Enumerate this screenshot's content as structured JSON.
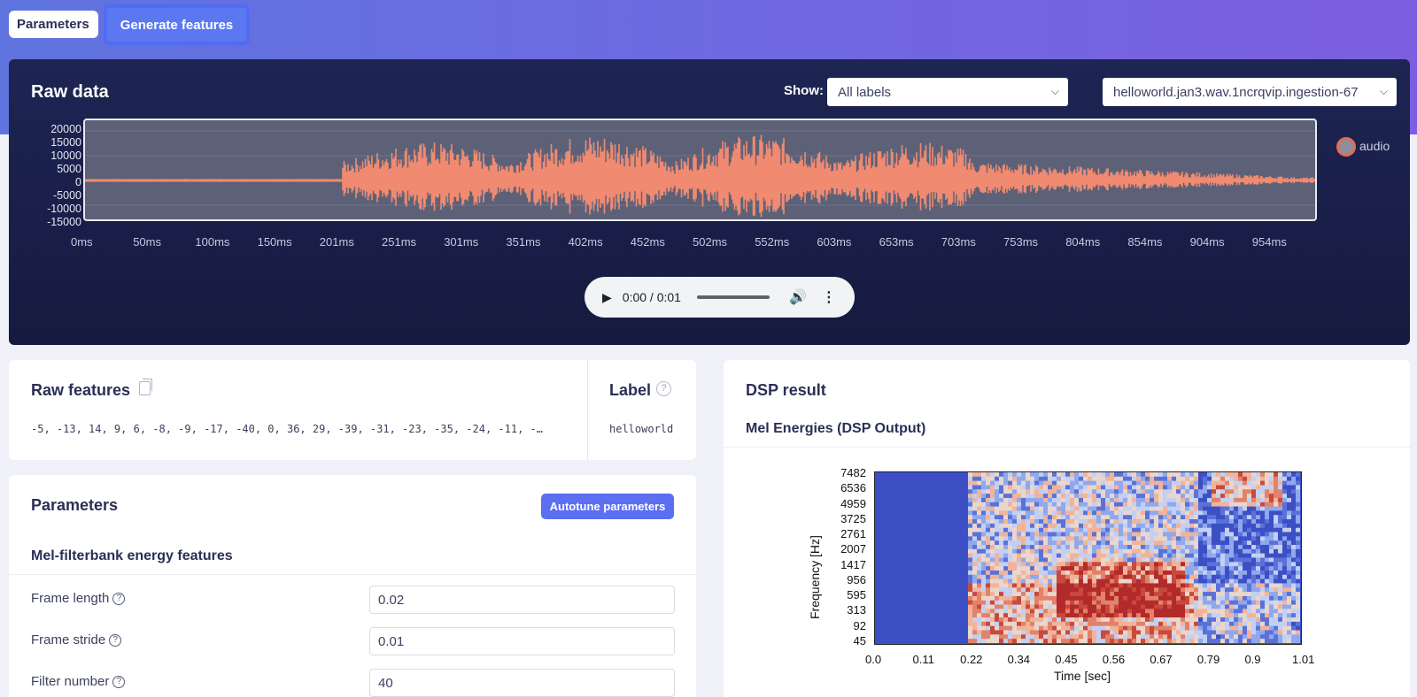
{
  "tabs": {
    "parameters": "Parameters",
    "generate": "Generate features"
  },
  "raw_data": {
    "title": "Raw data",
    "show_label": "Show:",
    "show_value": "All labels",
    "file_value": "helloworld.jan3.wav.1ncrqvip.ingestion-67",
    "y_ticks": [
      "20000",
      "15000",
      "10000",
      "5000",
      "0",
      "-5000",
      "-10000",
      "-15000"
    ],
    "x_ticks": [
      "0ms",
      "50ms",
      "100ms",
      "150ms",
      "201ms",
      "251ms",
      "301ms",
      "351ms",
      "402ms",
      "452ms",
      "502ms",
      "552ms",
      "603ms",
      "653ms",
      "703ms",
      "753ms",
      "804ms",
      "854ms",
      "904ms",
      "954ms"
    ],
    "legend": "audio",
    "wave_color": "#f08a70"
  },
  "audio_player": {
    "time": "0:00 / 0:01"
  },
  "raw_features": {
    "title": "Raw features",
    "values": "-5, -13, 14, 9, 6, -8, -9, -17, -40, 0, 36, 29, -39, -31, -23, -35, -24, -11, -…",
    "label_title": "Label",
    "label_value": "helloworld"
  },
  "parameters": {
    "title": "Parameters",
    "autotune": "Autotune parameters",
    "section": "Mel-filterbank energy features",
    "fields": [
      {
        "label": "Frame length",
        "value": "0.02"
      },
      {
        "label": "Frame stride",
        "value": "0.01"
      },
      {
        "label": "Filter number",
        "value": "40"
      }
    ]
  },
  "dsp": {
    "title": "DSP result",
    "subtitle": "Mel Energies (DSP Output)",
    "y_ticks": [
      "7482",
      "6536",
      "4959",
      "3725",
      "2761",
      "2007",
      "1417",
      "956",
      "595",
      "313",
      "92",
      "45"
    ],
    "x_ticks": [
      "0.0",
      "0.11",
      "0.22",
      "0.34",
      "0.45",
      "0.56",
      "0.67",
      "0.79",
      "0.9",
      "1.01"
    ],
    "ylabel": "Frequency [Hz]",
    "xlabel": "Time [sec]"
  }
}
